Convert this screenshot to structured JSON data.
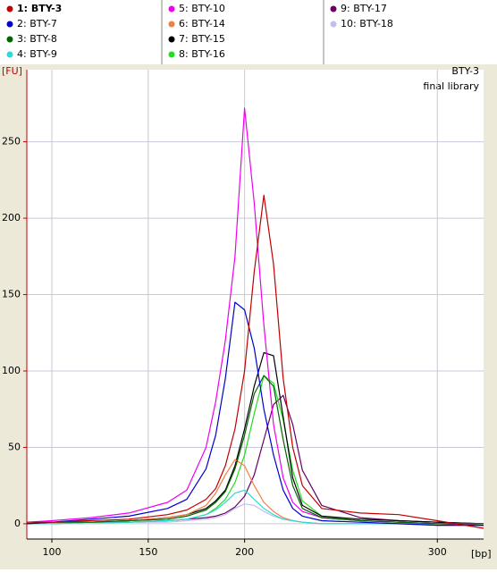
{
  "chart_data": {
    "type": "line",
    "annotations": [
      "BTY-3",
      "final library"
    ],
    "y_label": "[FU]",
    "x_label": "[bp]",
    "xlim": [
      87,
      324
    ],
    "ylim": [
      -10,
      296
    ],
    "xticks": [
      100,
      150,
      200,
      300
    ],
    "yticks": [
      0,
      50,
      100,
      150,
      200,
      250
    ],
    "grid": true,
    "x": [
      87,
      100,
      120,
      140,
      160,
      170,
      180,
      185,
      190,
      195,
      200,
      205,
      210,
      215,
      220,
      225,
      230,
      240,
      260,
      280,
      300,
      324
    ],
    "series": [
      {
        "name": "1: BTY-3",
        "color": "#c00000",
        "values": [
          1,
          1,
          2,
          3,
          6,
          9,
          16,
          23,
          38,
          62,
          100,
          165,
          215,
          170,
          95,
          50,
          25,
          10,
          7,
          6,
          2,
          -3
        ]
      },
      {
        "name": "2: BTY-7",
        "color": "#0000cc",
        "values": [
          0,
          1,
          3,
          5,
          10,
          16,
          36,
          58,
          95,
          145,
          140,
          115,
          75,
          45,
          22,
          10,
          5,
          2,
          1,
          0,
          -1,
          -1
        ]
      },
      {
        "name": "3: BTY-8",
        "color": "#006400",
        "values": [
          0,
          1,
          1,
          2,
          3,
          5,
          9,
          14,
          21,
          36,
          58,
          85,
          97,
          90,
          55,
          25,
          10,
          4,
          2,
          1,
          0,
          0
        ]
      },
      {
        "name": "4: BTY-9",
        "color": "#30d8d8",
        "values": [
          0,
          0,
          1,
          1,
          2,
          3,
          6,
          9,
          14,
          20,
          22,
          16,
          10,
          6,
          3,
          2,
          1,
          0,
          0,
          0,
          0,
          0
        ]
      },
      {
        "name": "5: BTY-10",
        "color": "#ee00ee",
        "values": [
          1,
          2,
          4,
          7,
          14,
          22,
          50,
          80,
          120,
          175,
          272,
          210,
          130,
          65,
          30,
          14,
          8,
          4,
          2,
          1,
          0,
          -1
        ]
      },
      {
        "name": "6: BTY-14",
        "color": "#f08040",
        "values": [
          0,
          1,
          1,
          2,
          4,
          6,
          12,
          20,
          32,
          42,
          38,
          25,
          14,
          8,
          4,
          2,
          1,
          0,
          0,
          0,
          -1,
          -1
        ]
      },
      {
        "name": "7: BTY-15",
        "color": "#000000",
        "values": [
          0,
          1,
          1,
          2,
          4,
          6,
          10,
          15,
          22,
          38,
          62,
          90,
          112,
          110,
          70,
          30,
          12,
          5,
          3,
          2,
          1,
          0
        ]
      },
      {
        "name": "8: BTY-16",
        "color": "#22dd22",
        "values": [
          0,
          0,
          1,
          1,
          2,
          3,
          6,
          10,
          16,
          27,
          45,
          72,
          97,
          92,
          68,
          35,
          15,
          5,
          2,
          1,
          0,
          -1
        ]
      },
      {
        "name": "9: BTY-17",
        "color": "#660066",
        "values": [
          0,
          0,
          1,
          1,
          2,
          3,
          4,
          5,
          7,
          11,
          18,
          32,
          55,
          78,
          84,
          65,
          35,
          12,
          4,
          2,
          1,
          0
        ]
      },
      {
        "name": "10: BTY-18",
        "color": "#c0c0f0",
        "values": [
          0,
          0,
          0,
          1,
          1,
          2,
          3,
          4,
          6,
          10,
          13,
          12,
          8,
          5,
          3,
          2,
          1,
          0,
          0,
          0,
          0,
          0
        ]
      }
    ]
  }
}
